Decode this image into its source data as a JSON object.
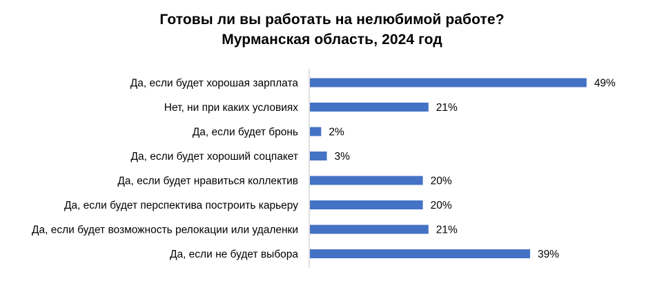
{
  "chart_data": {
    "type": "bar",
    "orientation": "horizontal",
    "title": "Готовы ли вы работать на нелюбимой работе?",
    "subtitle": "Мурманская область, 2024 год",
    "categories": [
      "Да, если будет хорошая зарплата",
      "Нет, ни при каких условиях",
      "Да, если будет бронь",
      "Да, если будет хороший соцпакет",
      "Да, если будет нравиться коллектив",
      "Да, если будет перспектива построить карьеру",
      "Да, если будет возможность релокации или удаленки",
      "Да, если не будет выбора"
    ],
    "values": [
      49,
      21,
      2,
      3,
      20,
      20,
      21,
      39
    ],
    "value_suffix": "%",
    "bar_color": "#4472C4",
    "axis_color": "#BFBFBF",
    "grid": false,
    "legend": "none"
  }
}
